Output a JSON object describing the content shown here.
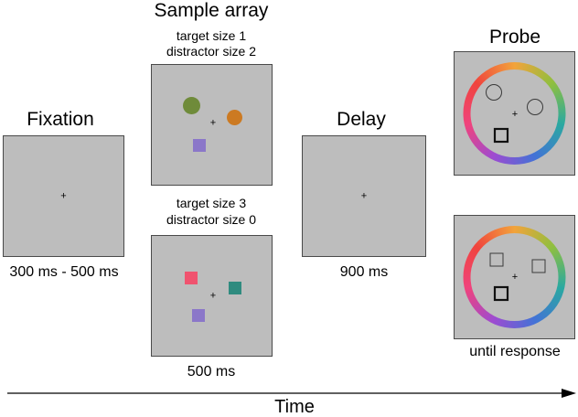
{
  "colors": {
    "screen_bg": "#bdbdbd",
    "screen_border": "#4a4a4a",
    "text": "#000000",
    "sample1_circle_left": "#6f8b3a",
    "sample1_circle_right": "#cc7a22",
    "sample1_square": "#8b77c9",
    "sample2_square_pink": "#f0536f",
    "sample2_square_teal": "#2f8b7f",
    "sample2_square_purple": "#8b77c9",
    "wheel_stops": [
      "#f2a33b",
      "#8fbf3f",
      "#2aa9a1",
      "#4273d6",
      "#9d4bd1",
      "#f0437c",
      "#f0443d",
      "#f2a33b"
    ]
  },
  "stages": {
    "fixation": {
      "title": "Fixation",
      "fixation_mark": "+",
      "duration": "300 ms - 500 ms"
    },
    "sample": {
      "title": "Sample array",
      "condition1_line1": "target size 1",
      "condition1_line2": "distractor size 2",
      "condition2_line1": "target size 3",
      "condition2_line2": "distractor size 0",
      "fixation_mark": "+",
      "duration": "500 ms"
    },
    "delay": {
      "title": "Delay",
      "fixation_mark": "+",
      "duration": "900 ms"
    },
    "probe": {
      "title": "Probe",
      "fixation_mark": "+",
      "duration": "until response"
    }
  },
  "axis": {
    "label": "Time"
  }
}
